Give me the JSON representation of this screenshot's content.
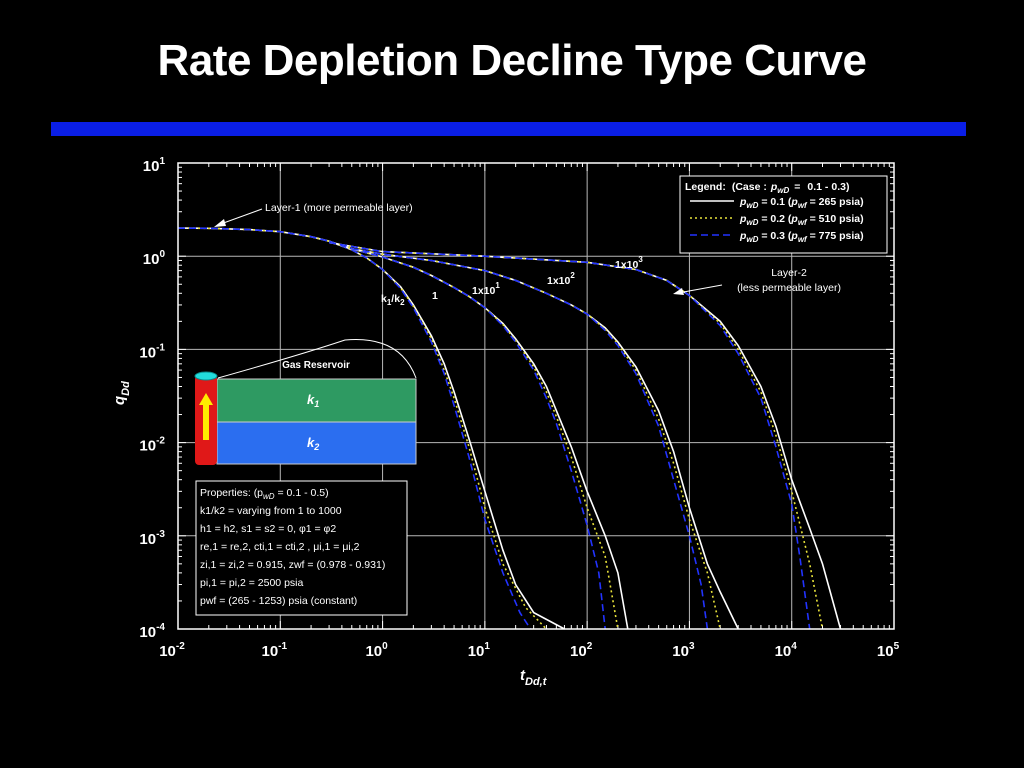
{
  "slide": {
    "title": "Rate Depletion Decline Type Curve",
    "accent_bar_color": "#0a1ee6"
  },
  "chart_data": {
    "type": "line",
    "x_scale": "log",
    "y_scale": "log",
    "xlim": [
      0.01,
      100000
    ],
    "ylim": [
      0.0001,
      10
    ],
    "grid": true,
    "xlabel": {
      "main": "t",
      "sub": "Dd,t"
    },
    "ylabel": {
      "main": "q",
      "sub": "Dd"
    },
    "x_ticks": [
      {
        "base": "10",
        "exp": "-2",
        "value": 0.01
      },
      {
        "base": "10",
        "exp": "-1",
        "value": 0.1
      },
      {
        "base": "10",
        "exp": "0",
        "value": 1
      },
      {
        "base": "10",
        "exp": "1",
        "value": 10
      },
      {
        "base": "10",
        "exp": "2",
        "value": 100
      },
      {
        "base": "10",
        "exp": "3",
        "value": 1000
      },
      {
        "base": "10",
        "exp": "4",
        "value": 10000
      },
      {
        "base": "10",
        "exp": "5",
        "value": 100000
      }
    ],
    "y_ticks": [
      {
        "base": "10",
        "exp": "1",
        "value": 10
      },
      {
        "base": "10",
        "exp": "0",
        "value": 1
      },
      {
        "base": "10",
        "exp": "-1",
        "value": 0.1
      },
      {
        "base": "10",
        "exp": "-2",
        "value": 0.01
      },
      {
        "base": "10",
        "exp": "-3",
        "value": 0.001
      },
      {
        "base": "10",
        "exp": "-4",
        "value": 0.0001
      }
    ],
    "line_styles": [
      {
        "key": "pwD_0.1",
        "color": "#ffffff",
        "dash": ""
      },
      {
        "key": "pwD_0.2",
        "color": "#e8e23a",
        "dash": "2,3"
      },
      {
        "key": "pwD_0.3",
        "color": "#2233ff",
        "dash": "7,4"
      }
    ],
    "curves": [
      {
        "k1_over_k2": "1",
        "pwD_0.1": [
          [
            0.01,
            2.0
          ],
          [
            0.02,
            1.99
          ],
          [
            0.05,
            1.93
          ],
          [
            0.1,
            1.83
          ],
          [
            0.2,
            1.62
          ],
          [
            0.3,
            1.45
          ],
          [
            0.5,
            1.17
          ],
          [
            0.7,
            0.96
          ],
          [
            1,
            0.72
          ],
          [
            1.5,
            0.47
          ],
          [
            2,
            0.3
          ],
          [
            3,
            0.14
          ],
          [
            4,
            0.07
          ],
          [
            5,
            0.035
          ],
          [
            7,
            0.011
          ],
          [
            10,
            0.003
          ],
          [
            15,
            0.0007
          ],
          [
            20,
            0.0003
          ],
          [
            30,
            0.00015
          ],
          [
            60,
            0.0001
          ]
        ],
        "pwD_0.2": [
          [
            0.01,
            2.0
          ],
          [
            0.02,
            1.99
          ],
          [
            0.05,
            1.93
          ],
          [
            0.1,
            1.83
          ],
          [
            0.2,
            1.62
          ],
          [
            0.3,
            1.45
          ],
          [
            0.5,
            1.17
          ],
          [
            0.7,
            0.96
          ],
          [
            1,
            0.72
          ],
          [
            1.5,
            0.46
          ],
          [
            2,
            0.29
          ],
          [
            3,
            0.13
          ],
          [
            4,
            0.06
          ],
          [
            5,
            0.03
          ],
          [
            7,
            0.009
          ],
          [
            10,
            0.002
          ],
          [
            15,
            0.0005
          ],
          [
            25,
            0.00017
          ],
          [
            40,
            0.0001
          ]
        ],
        "pwD_0.3": [
          [
            0.01,
            2.0
          ],
          [
            0.02,
            1.99
          ],
          [
            0.05,
            1.93
          ],
          [
            0.1,
            1.83
          ],
          [
            0.2,
            1.62
          ],
          [
            0.3,
            1.45
          ],
          [
            0.5,
            1.17
          ],
          [
            0.7,
            0.96
          ],
          [
            1,
            0.72
          ],
          [
            1.5,
            0.45
          ],
          [
            2,
            0.28
          ],
          [
            3,
            0.12
          ],
          [
            4,
            0.055
          ],
          [
            5,
            0.025
          ],
          [
            7,
            0.007
          ],
          [
            10,
            0.0015
          ],
          [
            15,
            0.0004
          ],
          [
            22,
            0.00015
          ],
          [
            28,
            0.0001
          ]
        ]
      },
      {
        "k1_over_k2": "1x10",
        "k1_over_k2_exp": "1",
        "pwD_0.1": [
          [
            0.3,
            1.45
          ],
          [
            0.5,
            1.2
          ],
          [
            1,
            0.98
          ],
          [
            2,
            0.76
          ],
          [
            3,
            0.62
          ],
          [
            5,
            0.46
          ],
          [
            7,
            0.37
          ],
          [
            10,
            0.28
          ],
          [
            15,
            0.19
          ],
          [
            20,
            0.13
          ],
          [
            30,
            0.07
          ],
          [
            40,
            0.04
          ],
          [
            50,
            0.022
          ],
          [
            70,
            0.009
          ],
          [
            100,
            0.003
          ],
          [
            150,
            0.001
          ],
          [
            200,
            0.0004
          ],
          [
            250,
            0.0001
          ]
        ],
        "pwD_0.2": [
          [
            0.3,
            1.45
          ],
          [
            0.5,
            1.2
          ],
          [
            1,
            0.98
          ],
          [
            2,
            0.76
          ],
          [
            3,
            0.62
          ],
          [
            5,
            0.46
          ],
          [
            7,
            0.37
          ],
          [
            10,
            0.28
          ],
          [
            15,
            0.185
          ],
          [
            20,
            0.125
          ],
          [
            30,
            0.065
          ],
          [
            40,
            0.035
          ],
          [
            50,
            0.019
          ],
          [
            70,
            0.007
          ],
          [
            100,
            0.002
          ],
          [
            150,
            0.0006
          ],
          [
            200,
            0.0001
          ]
        ],
        "pwD_0.3": [
          [
            0.3,
            1.45
          ],
          [
            0.5,
            1.2
          ],
          [
            1,
            0.98
          ],
          [
            2,
            0.76
          ],
          [
            3,
            0.62
          ],
          [
            5,
            0.46
          ],
          [
            7,
            0.37
          ],
          [
            10,
            0.28
          ],
          [
            15,
            0.18
          ],
          [
            20,
            0.12
          ],
          [
            30,
            0.06
          ],
          [
            40,
            0.03
          ],
          [
            50,
            0.016
          ],
          [
            70,
            0.005
          ],
          [
            100,
            0.0013
          ],
          [
            130,
            0.0004
          ],
          [
            150,
            0.0001
          ]
        ]
      },
      {
        "k1_over_k2": "1x10",
        "k1_over_k2_exp": "2",
        "pwD_0.1": [
          [
            0.5,
            1.2
          ],
          [
            1,
            1.05
          ],
          [
            3,
            0.9
          ],
          [
            10,
            0.7
          ],
          [
            20,
            0.55
          ],
          [
            40,
            0.4
          ],
          [
            70,
            0.3
          ],
          [
            100,
            0.24
          ],
          [
            150,
            0.17
          ],
          [
            200,
            0.12
          ],
          [
            300,
            0.065
          ],
          [
            500,
            0.022
          ],
          [
            700,
            0.008
          ],
          [
            1000,
            0.002
          ],
          [
            1500,
            0.0005
          ],
          [
            2000,
            0.00025
          ],
          [
            3000,
            0.0001
          ]
        ],
        "pwD_0.2": [
          [
            0.5,
            1.2
          ],
          [
            1,
            1.05
          ],
          [
            3,
            0.9
          ],
          [
            10,
            0.7
          ],
          [
            20,
            0.55
          ],
          [
            40,
            0.4
          ],
          [
            70,
            0.3
          ],
          [
            100,
            0.24
          ],
          [
            150,
            0.165
          ],
          [
            200,
            0.115
          ],
          [
            300,
            0.06
          ],
          [
            500,
            0.018
          ],
          [
            700,
            0.006
          ],
          [
            1000,
            0.0015
          ],
          [
            1500,
            0.0004
          ],
          [
            2000,
            0.0001
          ]
        ],
        "pwD_0.3": [
          [
            0.5,
            1.2
          ],
          [
            1,
            1.05
          ],
          [
            3,
            0.9
          ],
          [
            10,
            0.7
          ],
          [
            20,
            0.55
          ],
          [
            40,
            0.4
          ],
          [
            70,
            0.3
          ],
          [
            100,
            0.24
          ],
          [
            150,
            0.16
          ],
          [
            200,
            0.11
          ],
          [
            300,
            0.055
          ],
          [
            500,
            0.015
          ],
          [
            700,
            0.004
          ],
          [
            1000,
            0.001
          ],
          [
            1300,
            0.0003
          ],
          [
            1500,
            0.0001
          ]
        ]
      },
      {
        "k1_over_k2": "1x10",
        "k1_over_k2_exp": "3",
        "pwD_0.1": [
          [
            0.3,
            1.4
          ],
          [
            1,
            1.12
          ],
          [
            10,
            1.0
          ],
          [
            100,
            0.86
          ],
          [
            300,
            0.72
          ],
          [
            600,
            0.55
          ],
          [
            1000,
            0.38
          ],
          [
            2000,
            0.2
          ],
          [
            3000,
            0.11
          ],
          [
            5000,
            0.04
          ],
          [
            7000,
            0.015
          ],
          [
            10000,
            0.004
          ],
          [
            15000,
            0.0012
          ],
          [
            20000,
            0.0005
          ],
          [
            30000,
            0.0001
          ]
        ],
        "pwD_0.2": [
          [
            0.3,
            1.4
          ],
          [
            1,
            1.12
          ],
          [
            10,
            1.0
          ],
          [
            100,
            0.86
          ],
          [
            300,
            0.72
          ],
          [
            600,
            0.55
          ],
          [
            1000,
            0.38
          ],
          [
            2000,
            0.19
          ],
          [
            3000,
            0.1
          ],
          [
            5000,
            0.035
          ],
          [
            7000,
            0.012
          ],
          [
            10000,
            0.003
          ],
          [
            15000,
            0.0005
          ],
          [
            20000,
            0.0001
          ]
        ],
        "pwD_0.3": [
          [
            0.3,
            1.4
          ],
          [
            1,
            1.12
          ],
          [
            10,
            1.0
          ],
          [
            100,
            0.86
          ],
          [
            300,
            0.72
          ],
          [
            600,
            0.55
          ],
          [
            1000,
            0.38
          ],
          [
            2000,
            0.18
          ],
          [
            3000,
            0.09
          ],
          [
            5000,
            0.03
          ],
          [
            7000,
            0.009
          ],
          [
            10000,
            0.0022
          ],
          [
            12000,
            0.0006
          ],
          [
            15000,
            0.0001
          ]
        ]
      }
    ],
    "legend": {
      "header": [
        "Legend:",
        "(Case :",
        "p",
        "wD",
        "=",
        "0.1 - 0.3)"
      ],
      "entries": [
        {
          "p": "p",
          "psub": "wD",
          "eq": "= 0.1 (",
          "pp": "p",
          "ppsub": "wf",
          "rest": "= 265 psia)"
        },
        {
          "p": "p",
          "psub": "wD",
          "eq": "= 0.2 (",
          "pp": "p",
          "ppsub": "wf",
          "rest": "= 510 psia)"
        },
        {
          "p": "p",
          "psub": "wD",
          "eq": "= 0.3 (",
          "pp": "p",
          "ppsub": "wf",
          "rest": "= 775 psia)"
        }
      ],
      "placement": "top-right"
    },
    "annotations": {
      "layer1": "Layer-1 (more permeable layer)",
      "layer2_line1": "Layer-2",
      "layer2_line2": "(less permeable layer)",
      "k1k2_label": {
        "k": "k",
        "s1": "1",
        "slash": "/k",
        "s2": "2"
      },
      "curve_labels": [
        {
          "text": "1",
          "exp": ""
        },
        {
          "text": "1x10",
          "exp": "1"
        },
        {
          "text": "1x10",
          "exp": "2"
        },
        {
          "text": "1x10",
          "exp": "3"
        }
      ]
    },
    "reservoir_diagram": {
      "label": "Gas Reservoir",
      "layer1": {
        "k": "k",
        "sub": "1",
        "color": "#2e9a62"
      },
      "layer2": {
        "k": "k",
        "sub": "2",
        "color": "#2b6ef0"
      },
      "well_color": "#e01818",
      "well_top_color": "#22dddd",
      "arrow_color": "#ffee00"
    },
    "properties": {
      "title": "Properties: (p",
      "title_sub": "wD",
      "title_rest": " = 0.1 - 0.5)",
      "lines": [
        "k1/k2 = varying from 1 to 1000",
        "h1 = h2, s1 = s2 = 0, φ1 = φ2",
        "re,1 = re,2, cti,1 = cti,2 , μi,1 = μi,2",
        "zi,1 = zi,2 = 0.915, zwf = (0.978 - 0.931)",
        "pi,1 = pi,2 = 2500 psia",
        "pwf = (265 - 1253) psia (constant)"
      ]
    }
  }
}
